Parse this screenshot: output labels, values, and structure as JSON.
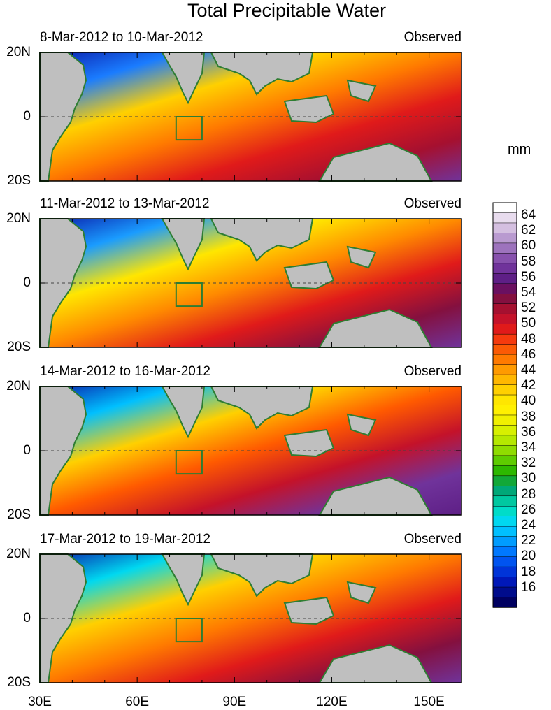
{
  "title": "Total Precipitable Water",
  "unit": "mm",
  "panels": [
    {
      "date_range": "8-Mar-2012 to 10-Mar-2012",
      "tag": "Observed"
    },
    {
      "date_range": "11-Mar-2012 to 13-Mar-2012",
      "tag": "Observed"
    },
    {
      "date_range": "14-Mar-2012 to 16-Mar-2012",
      "tag": "Observed"
    },
    {
      "date_range": "17-Mar-2012 to 19-Mar-2012",
      "tag": "Observed"
    }
  ],
  "lat_labels": [
    "20N",
    "0",
    "20S"
  ],
  "lon_labels": [
    "30E",
    "60E",
    "90E",
    "120E",
    "150E"
  ],
  "colorbar_labels": [
    "64",
    "62",
    "60",
    "58",
    "56",
    "54",
    "52",
    "50",
    "48",
    "46",
    "44",
    "42",
    "40",
    "38",
    "36",
    "34",
    "32",
    "30",
    "28",
    "26",
    "24",
    "22",
    "20",
    "18",
    "16"
  ],
  "colors": {
    "land": "#bfbfbf",
    "coast": "#2e7d32",
    "box": "#2e7d32"
  },
  "colorbar": [
    "#ffffff",
    "#e8dcee",
    "#d4bfe0",
    "#b99ad0",
    "#9d73bd",
    "#8751ad",
    "#70339b",
    "#5e1f86",
    "#6a1060",
    "#84103f",
    "#a51030",
    "#c4122a",
    "#e01a1a",
    "#f53a0e",
    "#fb5a05",
    "#ff7a00",
    "#ff9a00",
    "#ffb700",
    "#ffd000",
    "#ffe600",
    "#fff000",
    "#f0f000",
    "#d7f000",
    "#b5e800",
    "#8fdc00",
    "#5ecc00",
    "#2db800",
    "#12a838",
    "#00a878",
    "#00c8a0",
    "#00dcc8",
    "#00d8f0",
    "#00c0ff",
    "#009cff",
    "#0078ff",
    "#0054f0",
    "#0034d8",
    "#0018b8",
    "#000c8c",
    "#000060"
  ]
}
